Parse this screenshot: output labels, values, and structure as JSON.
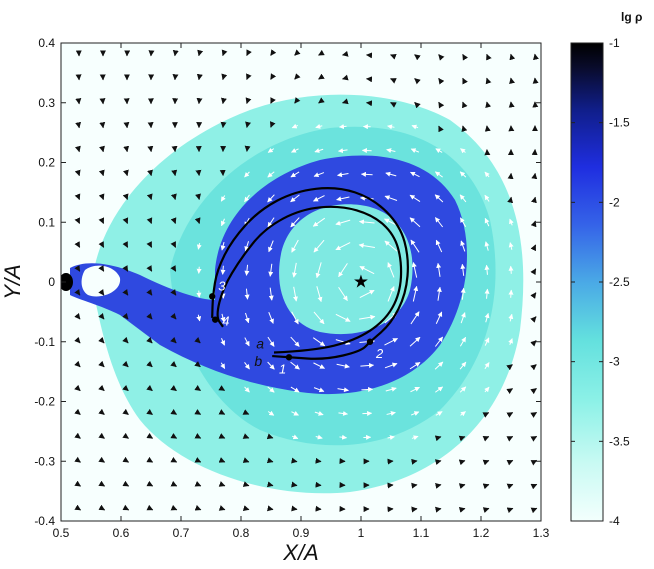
{
  "chart_data": {
    "type": "heatmap",
    "xlabel": "X/A",
    "ylabel": "Y/A",
    "xlim": [
      0.5,
      1.3
    ],
    "ylim": [
      -0.4,
      0.4
    ],
    "xticks": [
      "0.5",
      "0.6",
      "0.7",
      "0.8",
      "0.9",
      "1",
      "1.1",
      "1.2",
      "1.3"
    ],
    "yticks": [
      "0.4",
      "0.3",
      "0.2",
      "0.1",
      "0",
      "-0.1",
      "-0.2",
      "-0.3",
      "-0.4"
    ],
    "grid": false,
    "colorbar": {
      "title": "lg ρ",
      "range": [
        -4,
        -1
      ],
      "ticks": [
        "-1",
        "-1.5",
        "-2",
        "-2.5",
        "-3",
        "-3.5",
        "-4"
      ],
      "colors": [
        "#f3fffd",
        "#c9faf3",
        "#8df1e7",
        "#63e0de",
        "#4aa9e6",
        "#3563e8",
        "#1f2ee0",
        "#101e8a",
        "#090b2a",
        "#000000"
      ]
    },
    "star": {
      "x": 1.0,
      "y": 0.0,
      "label": "★"
    },
    "trajectories": [
      {
        "name": "a",
        "label": "a",
        "points": [
          [
            0.855,
            -0.118
          ],
          [
            0.92,
            -0.115
          ],
          [
            0.99,
            -0.098
          ],
          [
            1.04,
            -0.065
          ],
          [
            1.065,
            -0.02
          ],
          [
            1.068,
            0.035
          ],
          [
            1.055,
            0.08
          ],
          [
            1.02,
            0.112
          ],
          [
            0.965,
            0.128
          ],
          [
            0.9,
            0.122
          ],
          [
            0.84,
            0.09
          ],
          [
            0.8,
            0.04
          ],
          [
            0.77,
            -0.01
          ],
          [
            0.758,
            -0.058
          ],
          [
            0.77,
            -0.075
          ]
        ]
      },
      {
        "name": "b",
        "label": "b",
        "points": [
          [
            0.852,
            -0.124
          ],
          [
            0.88,
            -0.126
          ],
          [
            0.94,
            -0.13
          ],
          [
            1.0,
            -0.116
          ],
          [
            1.015,
            -0.1
          ],
          [
            1.05,
            -0.07
          ],
          [
            1.075,
            -0.02
          ],
          [
            1.08,
            0.04
          ],
          [
            1.065,
            0.095
          ],
          [
            1.02,
            0.14
          ],
          [
            0.96,
            0.16
          ],
          [
            0.89,
            0.152
          ],
          [
            0.83,
            0.12
          ],
          [
            0.785,
            0.07
          ],
          [
            0.76,
            0.02
          ],
          [
            0.753,
            -0.024
          ],
          [
            0.752,
            -0.06
          ]
        ]
      }
    ],
    "marked_points": [
      {
        "label": "1",
        "x": 0.88,
        "y": -0.126
      },
      {
        "label": "2",
        "x": 1.015,
        "y": -0.1
      },
      {
        "label": "3",
        "x": 0.752,
        "y": -0.024
      },
      {
        "label": "4",
        "x": 0.757,
        "y": -0.063
      }
    ],
    "accretor_blob": {
      "x": 0.51,
      "y": 0.0
    }
  }
}
